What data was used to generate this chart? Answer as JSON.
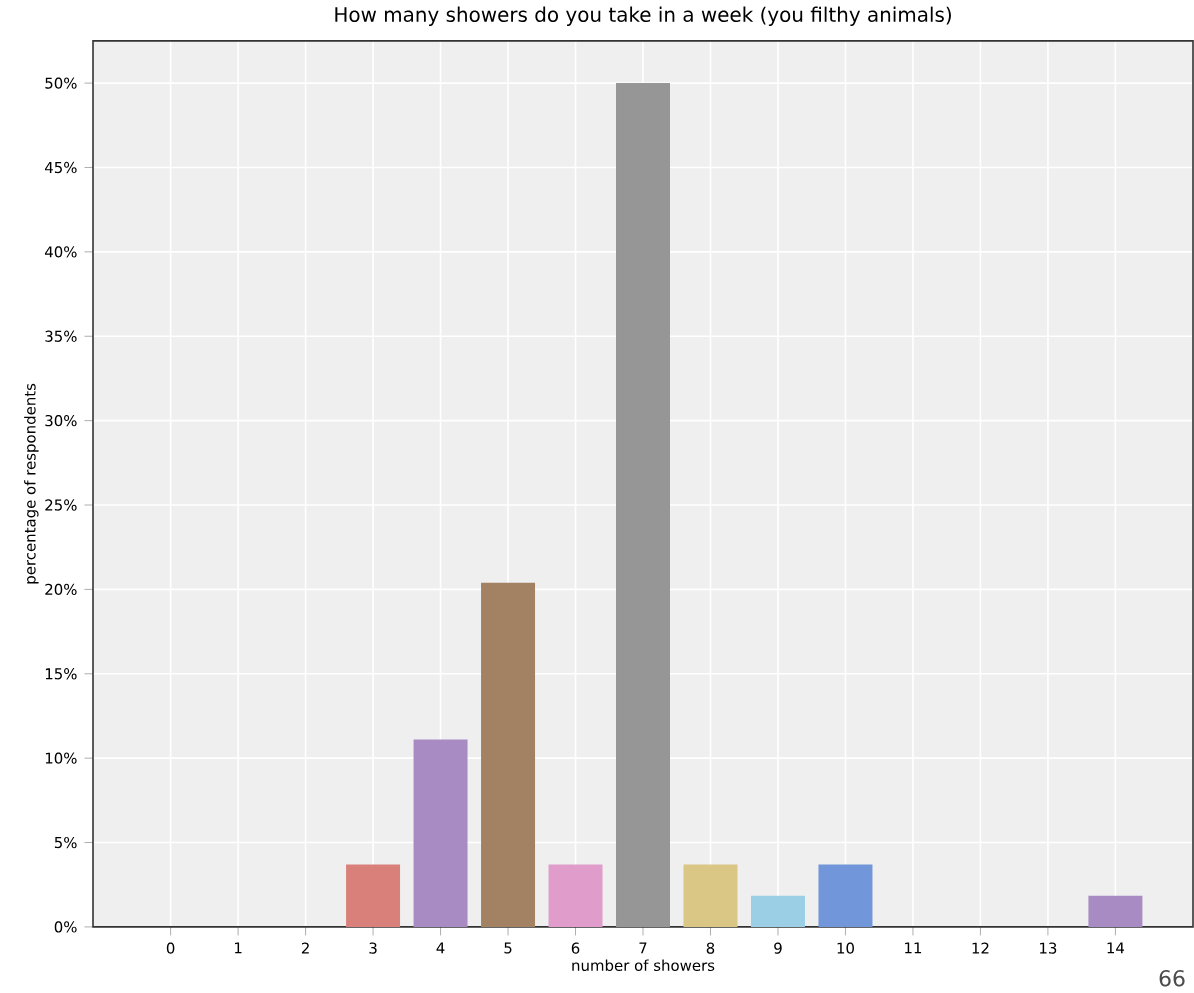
{
  "chart_data": {
    "type": "bar",
    "title": "How many showers do you take in a week (you filthy animals)",
    "xlabel": "number of showers",
    "ylabel": "percentage of respondents",
    "categories": [
      "0",
      "1",
      "2",
      "3",
      "4",
      "5",
      "6",
      "7",
      "8",
      "9",
      "10",
      "11",
      "12",
      "13",
      "14"
    ],
    "values": [
      0,
      0,
      0,
      3.7,
      11.1,
      20.4,
      3.7,
      50,
      3.7,
      1.85,
      3.7,
      0,
      0,
      0,
      1.85
    ],
    "colors": [
      "#7aaad2",
      "#f9ac6b",
      "#7fc17f",
      "#d9807a",
      "#a98bc4",
      "#a38163",
      "#e09ccb",
      "#969696",
      "#dac685",
      "#9acfe5",
      "#7196d9",
      "#d3d37c",
      "#72d1dc",
      "#7aaad2",
      "#a98bc4"
    ],
    "ylim": [
      0,
      52.5
    ],
    "yticks": [
      {
        "value": 0,
        "label": "0%"
      },
      {
        "value": 5,
        "label": "5%"
      },
      {
        "value": 10,
        "label": "10%"
      },
      {
        "value": 15,
        "label": "15%"
      },
      {
        "value": 20,
        "label": "20%"
      },
      {
        "value": 25,
        "label": "25%"
      },
      {
        "value": 30,
        "label": "30%"
      },
      {
        "value": 35,
        "label": "35%"
      },
      {
        "value": 40,
        "label": "40%"
      },
      {
        "value": 45,
        "label": "45%"
      },
      {
        "value": 50,
        "label": "50%"
      }
    ],
    "grid": true,
    "annotations": [
      "66"
    ]
  }
}
